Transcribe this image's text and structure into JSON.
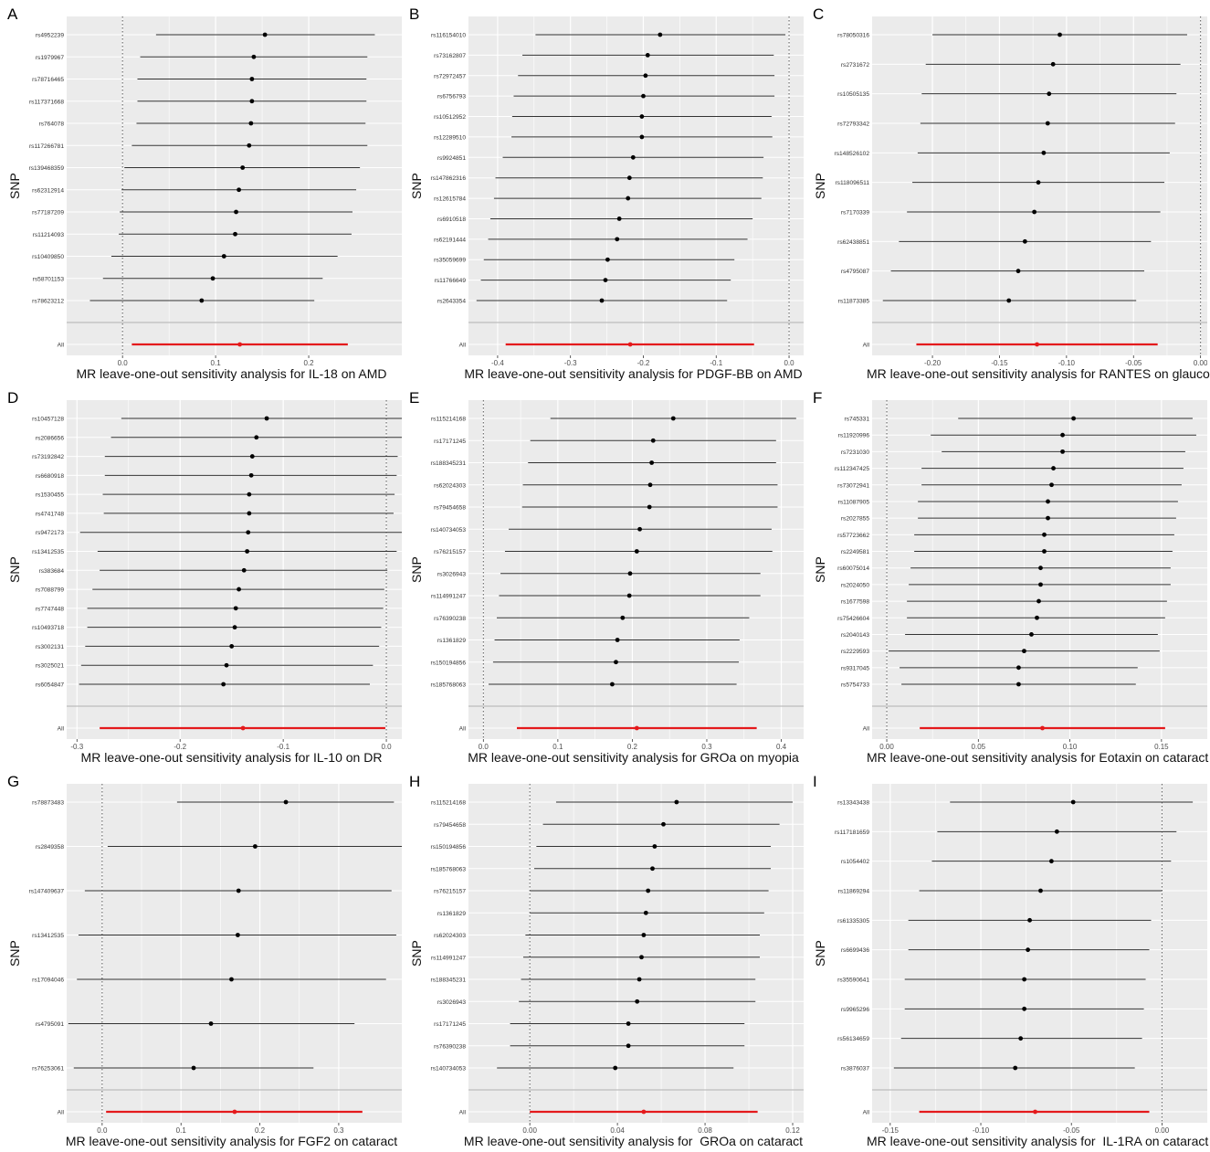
{
  "colors": {
    "panel_bg": "#ebebeb",
    "grid": "#ffffff",
    "line": "#333333",
    "dot": "#000000",
    "overall": "#e41a1c",
    "zero": "#555555",
    "separator": "#bdbdbd",
    "tick_text": "#4d4d4d"
  },
  "chart_data": [
    {
      "type": "forest",
      "panel": "A",
      "xlabel": "MR leave-one-out sensitivity analysis for IL-18 on AMD",
      "ylabel": "SNP",
      "xlim": [
        -0.06,
        0.3
      ],
      "xticks": [
        0.0,
        0.1,
        0.2
      ],
      "xtick_labels": [
        "0.0",
        "0.1",
        "0.2"
      ],
      "snps": [
        {
          "name": "rs4952239",
          "beta": 0.153,
          "lo": 0.036,
          "hi": 0.271
        },
        {
          "name": "rs1979967",
          "beta": 0.141,
          "lo": 0.019,
          "hi": 0.263
        },
        {
          "name": "rs78716465",
          "beta": 0.139,
          "lo": 0.016,
          "hi": 0.262
        },
        {
          "name": "rs117371668",
          "beta": 0.139,
          "lo": 0.016,
          "hi": 0.262
        },
        {
          "name": "rs764078",
          "beta": 0.138,
          "lo": 0.015,
          "hi": 0.261
        },
        {
          "name": "rs117266781",
          "beta": 0.136,
          "lo": 0.01,
          "hi": 0.263
        },
        {
          "name": "rs139468359",
          "beta": 0.129,
          "lo": 0.002,
          "hi": 0.255
        },
        {
          "name": "rs62312914",
          "beta": 0.125,
          "lo": -0.001,
          "hi": 0.251
        },
        {
          "name": "rs77187209",
          "beta": 0.122,
          "lo": -0.003,
          "hi": 0.247
        },
        {
          "name": "rs11214093",
          "beta": 0.121,
          "lo": -0.004,
          "hi": 0.246
        },
        {
          "name": "rs10409850",
          "beta": 0.109,
          "lo": -0.012,
          "hi": 0.231
        },
        {
          "name": "rs58701153",
          "beta": 0.097,
          "lo": -0.021,
          "hi": 0.215
        },
        {
          "name": "rs78623212",
          "beta": 0.085,
          "lo": -0.035,
          "hi": 0.206
        }
      ],
      "all": {
        "name": "All",
        "beta": 0.126,
        "lo": 0.01,
        "hi": 0.242
      }
    },
    {
      "type": "forest",
      "panel": "B",
      "xlabel": "MR leave-one-out sensitivity analysis for PDGF-BB on AMD",
      "ylabel": "SNP",
      "xlim": [
        -0.44,
        0.02
      ],
      "xticks": [
        -0.4,
        -0.3,
        -0.2,
        -0.1,
        0.0
      ],
      "xtick_labels": [
        "-0.4",
        "-0.3",
        "-0.2",
        "-0.1",
        "0.0"
      ],
      "snps": [
        {
          "name": "rs116154010",
          "beta": -0.177,
          "lo": -0.348,
          "hi": -0.005
        },
        {
          "name": "rs73162807",
          "beta": -0.194,
          "lo": -0.366,
          "hi": -0.021
        },
        {
          "name": "rs72972457",
          "beta": -0.197,
          "lo": -0.372,
          "hi": -0.02
        },
        {
          "name": "rs6756793",
          "beta": -0.2,
          "lo": -0.378,
          "hi": -0.02
        },
        {
          "name": "rs10512952",
          "beta": -0.202,
          "lo": -0.38,
          "hi": -0.024
        },
        {
          "name": "rs12289510",
          "beta": -0.202,
          "lo": -0.381,
          "hi": -0.023
        },
        {
          "name": "rs9924851",
          "beta": -0.214,
          "lo": -0.393,
          "hi": -0.035
        },
        {
          "name": "rs147862316",
          "beta": -0.219,
          "lo": -0.403,
          "hi": -0.036
        },
        {
          "name": "rs12615784",
          "beta": -0.221,
          "lo": -0.405,
          "hi": -0.038
        },
        {
          "name": "rs6910518",
          "beta": -0.233,
          "lo": -0.41,
          "hi": -0.05
        },
        {
          "name": "rs62191444",
          "beta": -0.236,
          "lo": -0.413,
          "hi": -0.057
        },
        {
          "name": "rs35059699",
          "beta": -0.249,
          "lo": -0.419,
          "hi": -0.075
        },
        {
          "name": "rs11766649",
          "beta": -0.252,
          "lo": -0.423,
          "hi": -0.08
        },
        {
          "name": "rs2643354",
          "beta": -0.257,
          "lo": -0.429,
          "hi": -0.085
        }
      ],
      "all": {
        "name": "All",
        "beta": -0.218,
        "lo": -0.389,
        "hi": -0.048
      }
    },
    {
      "type": "forest",
      "panel": "C",
      "xlabel": "MR leave-one-out sensitivity analysis for RANTES on glaucoma",
      "ylabel": "SNP",
      "xlim": [
        -0.245,
        0.005
      ],
      "xticks": [
        -0.2,
        -0.15,
        -0.1,
        -0.05,
        0.0
      ],
      "xtick_labels": [
        "-0.20",
        "-0.15",
        "-0.10",
        "-0.05",
        "0.00"
      ],
      "snps": [
        {
          "name": "rs78050316",
          "beta": -0.105,
          "lo": -0.2,
          "hi": -0.01
        },
        {
          "name": "rs2731672",
          "beta": -0.11,
          "lo": -0.205,
          "hi": -0.015
        },
        {
          "name": "rs10505135",
          "beta": -0.113,
          "lo": -0.208,
          "hi": -0.018
        },
        {
          "name": "rs72793342",
          "beta": -0.114,
          "lo": -0.209,
          "hi": -0.019
        },
        {
          "name": "rs148526102",
          "beta": -0.117,
          "lo": -0.211,
          "hi": -0.023
        },
        {
          "name": "rs118096511",
          "beta": -0.121,
          "lo": -0.215,
          "hi": -0.027
        },
        {
          "name": "rs7170339",
          "beta": -0.124,
          "lo": -0.219,
          "hi": -0.03
        },
        {
          "name": "rs62438851",
          "beta": -0.131,
          "lo": -0.225,
          "hi": -0.037
        },
        {
          "name": "rs4795087",
          "beta": -0.136,
          "lo": -0.231,
          "hi": -0.042
        },
        {
          "name": "rs11873385",
          "beta": -0.143,
          "lo": -0.237,
          "hi": -0.048
        }
      ],
      "all": {
        "name": "All",
        "beta": -0.122,
        "lo": -0.212,
        "hi": -0.032
      }
    },
    {
      "type": "forest",
      "panel": "D",
      "xlabel": "MR leave-one-out sensitivity analysis for IL-10 on DR",
      "ylabel": "SNP",
      "xlim": [
        -0.31,
        0.015
      ],
      "xticks": [
        -0.3,
        -0.2,
        -0.1,
        0.0
      ],
      "xtick_labels": [
        "-0.3",
        "-0.2",
        "-0.1",
        "0.0"
      ],
      "snps": [
        {
          "name": "rs10457128",
          "beta": -0.116,
          "lo": -0.257,
          "hi": 0.026
        },
        {
          "name": "rs2086656",
          "beta": -0.126,
          "lo": -0.267,
          "hi": 0.015
        },
        {
          "name": "rs73192842",
          "beta": -0.13,
          "lo": -0.273,
          "hi": 0.011
        },
        {
          "name": "rs6680918",
          "beta": -0.131,
          "lo": -0.273,
          "hi": 0.01
        },
        {
          "name": "rs1530455",
          "beta": -0.133,
          "lo": -0.275,
          "hi": 0.008
        },
        {
          "name": "rs4741748",
          "beta": -0.133,
          "lo": -0.274,
          "hi": 0.007
        },
        {
          "name": "rs9472173",
          "beta": -0.134,
          "lo": -0.297,
          "hi": 0.03
        },
        {
          "name": "rs13412535",
          "beta": -0.135,
          "lo": -0.28,
          "hi": 0.01
        },
        {
          "name": "rs383684",
          "beta": -0.138,
          "lo": -0.278,
          "hi": 0.001
        },
        {
          "name": "rs7088799",
          "beta": -0.143,
          "lo": -0.285,
          "hi": -0.002
        },
        {
          "name": "rs7747448",
          "beta": -0.146,
          "lo": -0.29,
          "hi": -0.003
        },
        {
          "name": "rs10493718",
          "beta": -0.147,
          "lo": -0.29,
          "hi": -0.005
        },
        {
          "name": "rs3002131",
          "beta": -0.15,
          "lo": -0.292,
          "hi": -0.007
        },
        {
          "name": "rs3025021",
          "beta": -0.155,
          "lo": -0.296,
          "hi": -0.013
        },
        {
          "name": "rs6054847",
          "beta": -0.158,
          "lo": -0.298,
          "hi": -0.016
        }
      ],
      "all": {
        "name": "All",
        "beta": -0.139,
        "lo": -0.278,
        "hi": -0.001
      }
    },
    {
      "type": "forest",
      "panel": "E",
      "xlabel": "MR leave-one-out sensitivity analysis for GROa on myopia",
      "ylabel": "SNP",
      "xlim": [
        -0.02,
        0.43
      ],
      "xticks": [
        0.0,
        0.1,
        0.2,
        0.3,
        0.4
      ],
      "xtick_labels": [
        "0.0",
        "0.1",
        "0.2",
        "0.3",
        "0.4"
      ],
      "snps": [
        {
          "name": "rs115214168",
          "beta": 0.255,
          "lo": 0.09,
          "hi": 0.42
        },
        {
          "name": "rs17171245",
          "beta": 0.228,
          "lo": 0.063,
          "hi": 0.393
        },
        {
          "name": "rs188345231",
          "beta": 0.226,
          "lo": 0.06,
          "hi": 0.393
        },
        {
          "name": "rs62024303",
          "beta": 0.224,
          "lo": 0.053,
          "hi": 0.395
        },
        {
          "name": "rs79454658",
          "beta": 0.223,
          "lo": 0.052,
          "hi": 0.395
        },
        {
          "name": "rs140734053",
          "beta": 0.21,
          "lo": 0.034,
          "hi": 0.387
        },
        {
          "name": "rs76215157",
          "beta": 0.206,
          "lo": 0.029,
          "hi": 0.388
        },
        {
          "name": "rs3026943",
          "beta": 0.197,
          "lo": 0.023,
          "hi": 0.372
        },
        {
          "name": "rs114991247",
          "beta": 0.196,
          "lo": 0.021,
          "hi": 0.372
        },
        {
          "name": "rs76390238",
          "beta": 0.187,
          "lo": 0.018,
          "hi": 0.357
        },
        {
          "name": "rs1361829",
          "beta": 0.18,
          "lo": 0.015,
          "hi": 0.344
        },
        {
          "name": "rs150194856",
          "beta": 0.178,
          "lo": 0.013,
          "hi": 0.343
        },
        {
          "name": "rs185768063",
          "beta": 0.173,
          "lo": 0.007,
          "hi": 0.34
        }
      ],
      "all": {
        "name": "All",
        "beta": 0.206,
        "lo": 0.045,
        "hi": 0.367
      }
    },
    {
      "type": "forest",
      "panel": "F",
      "xlabel": "MR leave-one-out sensitivity analysis for Eotaxin on cataract",
      "ylabel": "SNP",
      "xlim": [
        -0.008,
        0.175
      ],
      "xticks": [
        0.0,
        0.05,
        0.1,
        0.15
      ],
      "xtick_labels": [
        "0.00",
        "0.05",
        "0.10",
        "0.15"
      ],
      "snps": [
        {
          "name": "rs745331",
          "beta": 0.102,
          "lo": 0.039,
          "hi": 0.167
        },
        {
          "name": "rs11920996",
          "beta": 0.096,
          "lo": 0.024,
          "hi": 0.169
        },
        {
          "name": "rs7231030",
          "beta": 0.096,
          "lo": 0.03,
          "hi": 0.163
        },
        {
          "name": "rs112347425",
          "beta": 0.091,
          "lo": 0.019,
          "hi": 0.162
        },
        {
          "name": "rs73072941",
          "beta": 0.09,
          "lo": 0.019,
          "hi": 0.161
        },
        {
          "name": "rs11087905",
          "beta": 0.088,
          "lo": 0.017,
          "hi": 0.159
        },
        {
          "name": "rs2027855",
          "beta": 0.088,
          "lo": 0.017,
          "hi": 0.158
        },
        {
          "name": "rs57723662",
          "beta": 0.086,
          "lo": 0.015,
          "hi": 0.157
        },
        {
          "name": "rs2249581",
          "beta": 0.086,
          "lo": 0.015,
          "hi": 0.156
        },
        {
          "name": "rs60075014",
          "beta": 0.084,
          "lo": 0.013,
          "hi": 0.155
        },
        {
          "name": "rs2024050",
          "beta": 0.084,
          "lo": 0.012,
          "hi": 0.155
        },
        {
          "name": "rs1677598",
          "beta": 0.083,
          "lo": 0.011,
          "hi": 0.153
        },
        {
          "name": "rs75426604",
          "beta": 0.082,
          "lo": 0.011,
          "hi": 0.152
        },
        {
          "name": "rs2040143",
          "beta": 0.079,
          "lo": 0.01,
          "hi": 0.148
        },
        {
          "name": "rs2229593",
          "beta": 0.075,
          "lo": 0.001,
          "hi": 0.149
        },
        {
          "name": "rs9317045",
          "beta": 0.072,
          "lo": 0.007,
          "hi": 0.137
        },
        {
          "name": "rs5754733",
          "beta": 0.072,
          "lo": 0.008,
          "hi": 0.136
        }
      ],
      "all": {
        "name": "All",
        "beta": 0.085,
        "lo": 0.018,
        "hi": 0.152
      }
    },
    {
      "type": "forest",
      "panel": "G",
      "xlabel": "MR leave-one-out sensitivity analysis for FGF2 on cataract",
      "ylabel": "SNP",
      "xlim": [
        -0.045,
        0.38
      ],
      "xticks": [
        0.0,
        0.1,
        0.2,
        0.3
      ],
      "xtick_labels": [
        "0.0",
        "0.1",
        "0.2",
        "0.3"
      ],
      "snps": [
        {
          "name": "rs78873483",
          "beta": 0.233,
          "lo": 0.095,
          "hi": 0.37
        },
        {
          "name": "rs2849358",
          "beta": 0.194,
          "lo": 0.007,
          "hi": 0.385
        },
        {
          "name": "rs147409637",
          "beta": 0.173,
          "lo": -0.022,
          "hi": 0.367
        },
        {
          "name": "rs13412535",
          "beta": 0.172,
          "lo": -0.03,
          "hi": 0.373
        },
        {
          "name": "rs17094046",
          "beta": 0.164,
          "lo": -0.032,
          "hi": 0.36
        },
        {
          "name": "rs4795091",
          "beta": 0.138,
          "lo": -0.043,
          "hi": 0.32
        },
        {
          "name": "rs76253061",
          "beta": 0.116,
          "lo": -0.036,
          "hi": 0.268
        }
      ],
      "all": {
        "name": "All",
        "beta": 0.168,
        "lo": 0.005,
        "hi": 0.33
      }
    },
    {
      "type": "forest",
      "panel": "H",
      "xlabel": "MR leave-one-out sensitivity analysis for  GROa on cataract",
      "ylabel": "SNP",
      "xlim": [
        -0.028,
        0.125
      ],
      "xticks": [
        0.0,
        0.04,
        0.08,
        0.12
      ],
      "xtick_labels": [
        "0.00",
        "0.04",
        "0.08",
        "0.12"
      ],
      "snps": [
        {
          "name": "rs115214168",
          "beta": 0.067,
          "lo": 0.012,
          "hi": 0.12
        },
        {
          "name": "rs79454658",
          "beta": 0.061,
          "lo": 0.006,
          "hi": 0.114
        },
        {
          "name": "rs150194856",
          "beta": 0.057,
          "lo": 0.003,
          "hi": 0.11
        },
        {
          "name": "rs185768063",
          "beta": 0.056,
          "lo": 0.002,
          "hi": 0.11
        },
        {
          "name": "rs76215157",
          "beta": 0.054,
          "lo": 0.0,
          "hi": 0.109
        },
        {
          "name": "rs1361829",
          "beta": 0.053,
          "lo": 0.0,
          "hi": 0.107
        },
        {
          "name": "rs62024303",
          "beta": 0.052,
          "lo": -0.002,
          "hi": 0.105
        },
        {
          "name": "rs114991247",
          "beta": 0.051,
          "lo": -0.003,
          "hi": 0.105
        },
        {
          "name": "rs188345231",
          "beta": 0.05,
          "lo": -0.004,
          "hi": 0.103
        },
        {
          "name": "rs3026943",
          "beta": 0.049,
          "lo": -0.005,
          "hi": 0.103
        },
        {
          "name": "rs17171245",
          "beta": 0.045,
          "lo": -0.009,
          "hi": 0.098
        },
        {
          "name": "rs76390238",
          "beta": 0.045,
          "lo": -0.009,
          "hi": 0.098
        },
        {
          "name": "rs140734053",
          "beta": 0.039,
          "lo": -0.015,
          "hi": 0.093
        }
      ],
      "all": {
        "name": "All",
        "beta": 0.052,
        "lo": 0.0,
        "hi": 0.104
      }
    },
    {
      "type": "forest",
      "panel": "I",
      "xlabel": "MR leave-one-out sensitivity analysis for  IL-1RA on cataract",
      "ylabel": "SNP",
      "xlim": [
        -0.16,
        0.025
      ],
      "xticks": [
        -0.15,
        -0.1,
        -0.05,
        0.0
      ],
      "xtick_labels": [
        "-0.15",
        "-0.10",
        "-0.05",
        "0.00"
      ],
      "snps": [
        {
          "name": "rs13343438",
          "beta": -0.049,
          "lo": -0.117,
          "hi": 0.017
        },
        {
          "name": "rs117181659",
          "beta": -0.058,
          "lo": -0.124,
          "hi": 0.008
        },
        {
          "name": "rs1054402",
          "beta": -0.061,
          "lo": -0.127,
          "hi": 0.005
        },
        {
          "name": "rs11869294",
          "beta": -0.067,
          "lo": -0.134,
          "hi": 0.0
        },
        {
          "name": "rs61335305",
          "beta": -0.073,
          "lo": -0.14,
          "hi": -0.006
        },
        {
          "name": "rs6699436",
          "beta": -0.074,
          "lo": -0.14,
          "hi": -0.007
        },
        {
          "name": "rs35590641",
          "beta": -0.076,
          "lo": -0.142,
          "hi": -0.009
        },
        {
          "name": "rs9965296",
          "beta": -0.076,
          "lo": -0.142,
          "hi": -0.01
        },
        {
          "name": "rs56134659",
          "beta": -0.078,
          "lo": -0.144,
          "hi": -0.011
        },
        {
          "name": "rs3876037",
          "beta": -0.081,
          "lo": -0.148,
          "hi": -0.015
        }
      ],
      "all": {
        "name": "All",
        "beta": -0.07,
        "lo": -0.134,
        "hi": -0.007
      }
    }
  ]
}
